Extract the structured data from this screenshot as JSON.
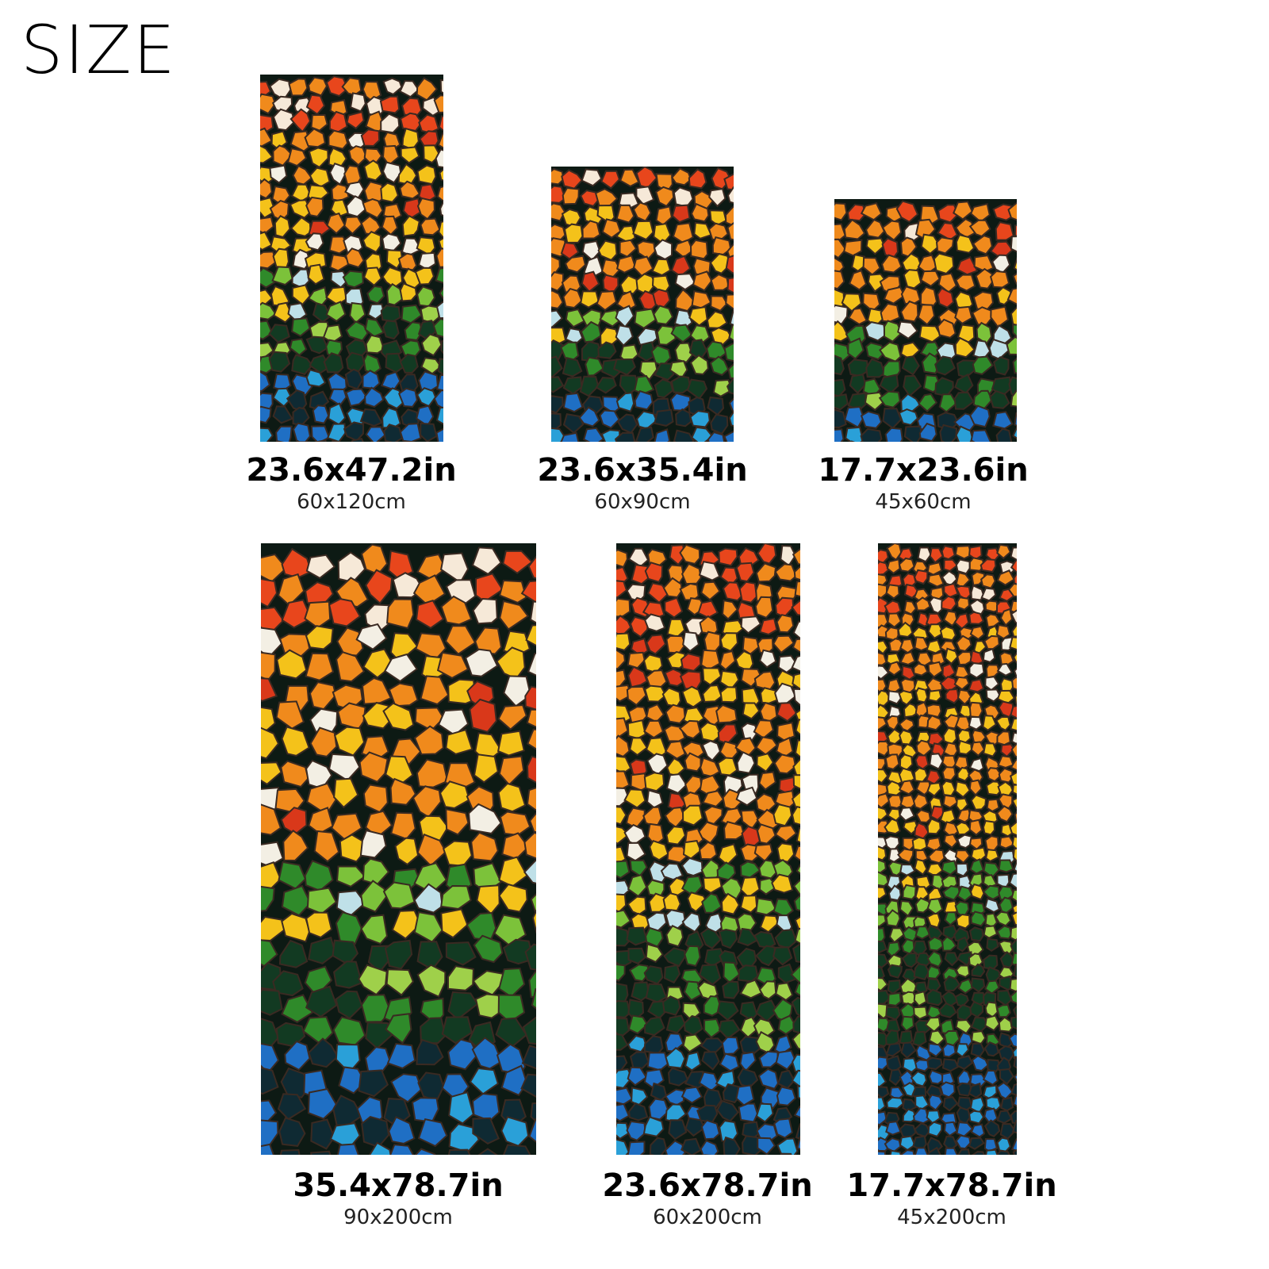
{
  "title": "SIZE",
  "sizes": [
    {
      "inches": "23.6x47.2in",
      "cm": "60x120cm"
    },
    {
      "inches": "23.6x35.4in",
      "cm": "60x90cm"
    },
    {
      "inches": "17.7x23.6in",
      "cm": "45x60cm"
    },
    {
      "inches": "35.4x78.7in",
      "cm": "90x200cm"
    },
    {
      "inches": "23.6x78.7in",
      "cm": "60x200cm"
    },
    {
      "inches": "17.7x78.7in",
      "cm": "45x200cm"
    }
  ],
  "colors": {
    "orange": "#f08a1c",
    "yellow": "#f4c21a",
    "green": "#2f8a2a",
    "dark_green": "#123a22",
    "blue": "#1f6fc4"
  }
}
